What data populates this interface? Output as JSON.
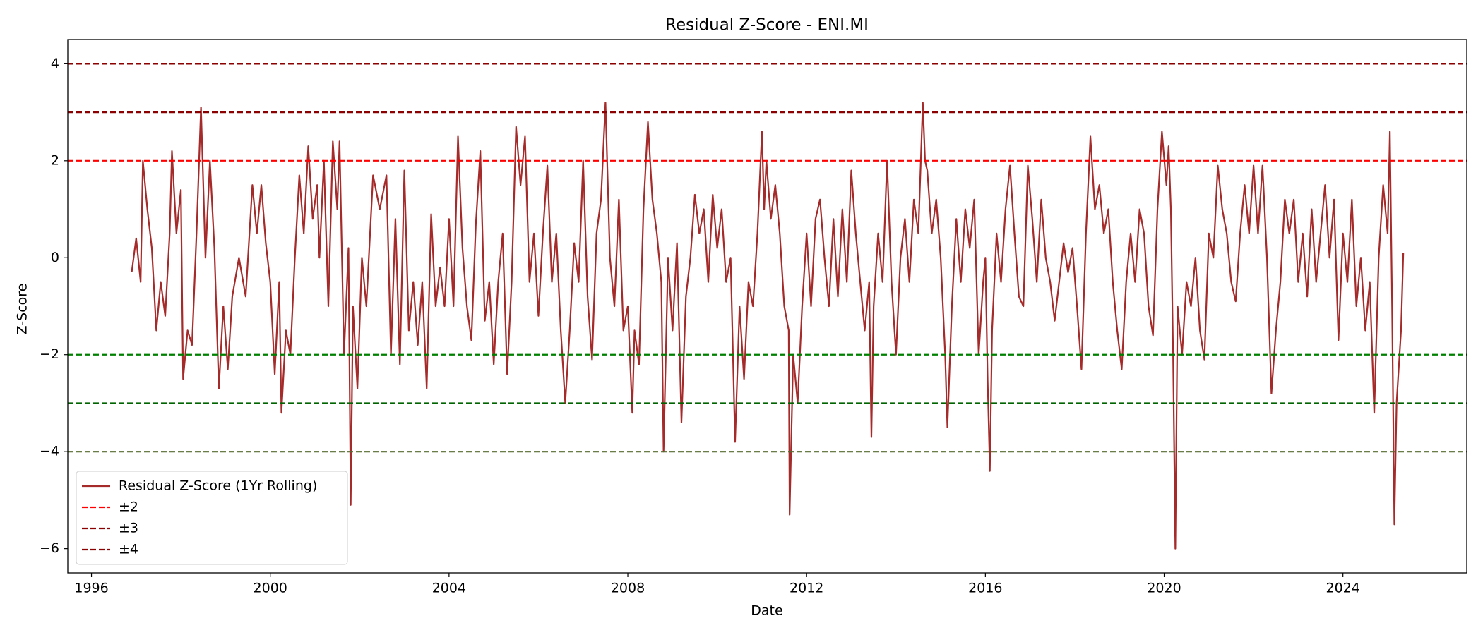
{
  "chart_data": {
    "type": "line",
    "title": "Residual Z-Score - ENI.MI",
    "xlabel": "Date",
    "ylabel": "Z-Score",
    "xlim": [
      1995.47,
      2026.77
    ],
    "xticks": [
      1996,
      2000,
      2004,
      2008,
      2012,
      2016,
      2020,
      2024
    ],
    "ylim": [
      -6.5,
      4.5
    ],
    "yticks": [
      {
        "value": -6,
        "label": "−6"
      },
      {
        "value": -4,
        "label": "−4"
      },
      {
        "value": -2,
        "label": "−2"
      },
      0,
      2,
      4
    ],
    "grid": false,
    "legend": "lower left",
    "series": [
      {
        "name": "Residual Z-Score (1Yr Rolling)",
        "color": "#a52a2a",
        "x": [
          1996.9,
          1997.0,
          1997.1,
          1997.15,
          1997.25,
          1997.35,
          1997.45,
          1997.55,
          1997.65,
          1997.75,
          1997.8,
          1997.9,
          1998.0,
          1998.05,
          1998.15,
          1998.25,
          1998.35,
          1998.45,
          1998.55,
          1998.65,
          1998.75,
          1998.85,
          1998.95,
          1999.05,
          1999.15,
          1999.3,
          1999.45,
          1999.6,
          1999.7,
          1999.8,
          1999.9,
          2000.0,
          2000.1,
          2000.2,
          2000.25,
          2000.35,
          2000.45,
          2000.55,
          2000.65,
          2000.75,
          2000.85,
          2000.95,
          2001.05,
          2001.1,
          2001.2,
          2001.3,
          2001.4,
          2001.5,
          2001.55,
          2001.65,
          2001.75,
          2001.8,
          2001.85,
          2001.95,
          2002.05,
          2002.15,
          2002.3,
          2002.45,
          2002.6,
          2002.7,
          2002.8,
          2002.9,
          2003.0,
          2003.1,
          2003.2,
          2003.3,
          2003.4,
          2003.5,
          2003.6,
          2003.7,
          2003.8,
          2003.9,
          2004.0,
          2004.1,
          2004.2,
          2004.3,
          2004.4,
          2004.5,
          2004.6,
          2004.7,
          2004.8,
          2004.9,
          2005.0,
          2005.1,
          2005.2,
          2005.3,
          2005.4,
          2005.5,
          2005.6,
          2005.7,
          2005.8,
          2005.9,
          2006.0,
          2006.1,
          2006.2,
          2006.3,
          2006.4,
          2006.5,
          2006.6,
          2006.7,
          2006.8,
          2006.9,
          2007.0,
          2007.1,
          2007.2,
          2007.3,
          2007.4,
          2007.5,
          2007.6,
          2007.7,
          2007.8,
          2007.9,
          2008.0,
          2008.1,
          2008.15,
          2008.25,
          2008.35,
          2008.45,
          2008.55,
          2008.65,
          2008.75,
          2008.8,
          2008.9,
          2009.0,
          2009.1,
          2009.2,
          2009.3,
          2009.4,
          2009.5,
          2009.6,
          2009.7,
          2009.8,
          2009.9,
          2010.0,
          2010.1,
          2010.2,
          2010.3,
          2010.4,
          2010.5,
          2010.6,
          2010.7,
          2010.8,
          2010.9,
          2011.0,
          2011.05,
          2011.1,
          2011.2,
          2011.3,
          2011.4,
          2011.5,
          2011.6,
          2011.62,
          2011.7,
          2011.8,
          2011.9,
          2012.0,
          2012.1,
          2012.2,
          2012.3,
          2012.4,
          2012.5,
          2012.6,
          2012.7,
          2012.8,
          2012.9,
          2013.0,
          2013.1,
          2013.2,
          2013.3,
          2013.4,
          2013.45,
          2013.5,
          2013.6,
          2013.7,
          2013.8,
          2013.9,
          2014.0,
          2014.1,
          2014.2,
          2014.3,
          2014.4,
          2014.5,
          2014.6,
          2014.65,
          2014.7,
          2014.8,
          2014.9,
          2015.0,
          2015.1,
          2015.15,
          2015.25,
          2015.35,
          2015.45,
          2015.55,
          2015.65,
          2015.75,
          2015.85,
          2015.95,
          2016.0,
          2016.05,
          2016.1,
          2016.15,
          2016.25,
          2016.35,
          2016.45,
          2016.55,
          2016.65,
          2016.75,
          2016.85,
          2016.95,
          2017.05,
          2017.15,
          2017.25,
          2017.35,
          2017.45,
          2017.55,
          2017.65,
          2017.75,
          2017.85,
          2017.95,
          2018.05,
          2018.15,
          2018.25,
          2018.35,
          2018.45,
          2018.55,
          2018.65,
          2018.75,
          2018.85,
          2018.95,
          2019.05,
          2019.15,
          2019.25,
          2019.35,
          2019.45,
          2019.55,
          2019.65,
          2019.75,
          2019.85,
          2019.95,
          2020.05,
          2020.1,
          2020.15,
          2020.2,
          2020.25,
          2020.3,
          2020.4,
          2020.5,
          2020.6,
          2020.7,
          2020.8,
          2020.9,
          2021.0,
          2021.1,
          2021.2,
          2021.3,
          2021.4,
          2021.5,
          2021.6,
          2021.7,
          2021.8,
          2021.9,
          2022.0,
          2022.1,
          2022.2,
          2022.3,
          2022.4,
          2022.5,
          2022.6,
          2022.7,
          2022.8,
          2022.9,
          2023.0,
          2023.1,
          2023.2,
          2023.3,
          2023.4,
          2023.5,
          2023.6,
          2023.7,
          2023.8,
          2023.9,
          2024.0,
          2024.1,
          2024.2,
          2024.3,
          2024.4,
          2024.5,
          2024.6,
          2024.7,
          2024.8,
          2024.9,
          2025.0,
          2025.05,
          2025.1,
          2025.15,
          2025.2,
          2025.3,
          2025.35
        ],
        "values": [
          -0.3,
          0.4,
          -0.5,
          2.0,
          1.0,
          0.2,
          -1.5,
          -0.5,
          -1.2,
          0.5,
          2.2,
          0.5,
          1.4,
          -2.5,
          -1.5,
          -1.8,
          0.5,
          3.1,
          0.0,
          2.0,
          0.2,
          -2.7,
          -1.0,
          -2.3,
          -0.8,
          0.0,
          -0.8,
          1.5,
          0.5,
          1.5,
          0.3,
          -0.5,
          -2.4,
          -0.5,
          -3.2,
          -1.5,
          -2.0,
          0.0,
          1.7,
          0.5,
          2.3,
          0.8,
          1.5,
          0.0,
          2.0,
          -1.0,
          2.4,
          1.0,
          2.4,
          -2.0,
          0.2,
          -5.1,
          -1.0,
          -2.7,
          0.0,
          -1.0,
          1.7,
          1.0,
          1.7,
          -2.0,
          0.8,
          -2.2,
          1.8,
          -1.5,
          -0.5,
          -1.8,
          -0.5,
          -2.7,
          0.9,
          -1.0,
          -0.2,
          -1.0,
          0.8,
          -1.0,
          2.5,
          0.2,
          -1.0,
          -1.7,
          0.7,
          2.2,
          -1.3,
          -0.5,
          -2.2,
          -0.5,
          0.5,
          -2.4,
          -0.5,
          2.7,
          1.5,
          2.5,
          -0.5,
          0.5,
          -1.2,
          0.5,
          1.9,
          -0.5,
          0.5,
          -1.5,
          -3.0,
          -1.5,
          0.3,
          -0.5,
          2.0,
          -0.8,
          -2.1,
          0.5,
          1.2,
          3.2,
          0.0,
          -1.0,
          1.2,
          -1.5,
          -1.0,
          -3.2,
          -1.5,
          -2.2,
          1.0,
          2.8,
          1.2,
          0.5,
          -0.5,
          -4.0,
          0.0,
          -1.5,
          0.3,
          -3.4,
          -0.8,
          0.0,
          1.3,
          0.5,
          1.0,
          -0.5,
          1.3,
          0.2,
          1.0,
          -0.5,
          0.0,
          -3.8,
          -1.0,
          -2.5,
          -0.5,
          -1.0,
          0.5,
          2.6,
          1.0,
          2.0,
          0.8,
          1.5,
          0.5,
          -1.0,
          -1.5,
          -5.3,
          -2.0,
          -3.0,
          -1.0,
          0.5,
          -1.0,
          0.8,
          1.2,
          0.0,
          -1.0,
          0.8,
          -0.8,
          1.0,
          -0.5,
          1.8,
          0.5,
          -0.5,
          -1.5,
          -0.5,
          -3.7,
          -1.0,
          0.5,
          -0.5,
          2.0,
          -0.5,
          -2.0,
          0.0,
          0.8,
          -0.5,
          1.2,
          0.5,
          3.2,
          2.0,
          1.8,
          0.5,
          1.2,
          0.0,
          -2.0,
          -3.5,
          -1.0,
          0.8,
          -0.5,
          1.0,
          0.2,
          1.2,
          -2.0,
          -0.5,
          0.0,
          -2.5,
          -4.4,
          -1.5,
          0.5,
          -0.5,
          1.0,
          1.9,
          0.5,
          -0.8,
          -1.0,
          1.9,
          0.8,
          -0.5,
          1.2,
          0.0,
          -0.5,
          -1.3,
          -0.5,
          0.3,
          -0.3,
          0.2,
          -1.0,
          -2.3,
          0.5,
          2.5,
          1.0,
          1.5,
          0.5,
          1.0,
          -0.5,
          -1.5,
          -2.3,
          -0.5,
          0.5,
          -0.5,
          1.0,
          0.5,
          -1.0,
          -1.6,
          1.0,
          2.6,
          1.5,
          2.3,
          1.0,
          -2.0,
          -6.0,
          -1.0,
          -2.0,
          -0.5,
          -1.0,
          0.0,
          -1.5,
          -2.1,
          0.5,
          0.0,
          1.9,
          1.0,
          0.5,
          -0.5,
          -0.9,
          0.5,
          1.5,
          0.5,
          1.9,
          0.5,
          1.9,
          0.0,
          -2.8,
          -1.5,
          -0.5,
          1.2,
          0.5,
          1.2,
          -0.5,
          0.5,
          -0.8,
          1.0,
          -0.5,
          0.5,
          1.5,
          0.0,
          1.2,
          -1.7,
          0.5,
          -0.5,
          1.2,
          -1.0,
          0.0,
          -1.5,
          -0.5,
          -3.2,
          0.0,
          1.5,
          0.5,
          2.6,
          -1.0,
          -5.5,
          -3.0,
          -1.5,
          0.1
        ]
      }
    ],
    "reference_lines": [
      {
        "name": "±2",
        "values": [
          2,
          -2
        ],
        "colors": [
          "#ff0000",
          "#008000"
        ]
      },
      {
        "name": "±3",
        "values": [
          3,
          -3
        ],
        "colors": [
          "#8b0000",
          "#006400"
        ]
      },
      {
        "name": "±4",
        "values": [
          4,
          -4
        ],
        "colors": [
          "#8b0000",
          "#556b2f"
        ]
      }
    ]
  }
}
